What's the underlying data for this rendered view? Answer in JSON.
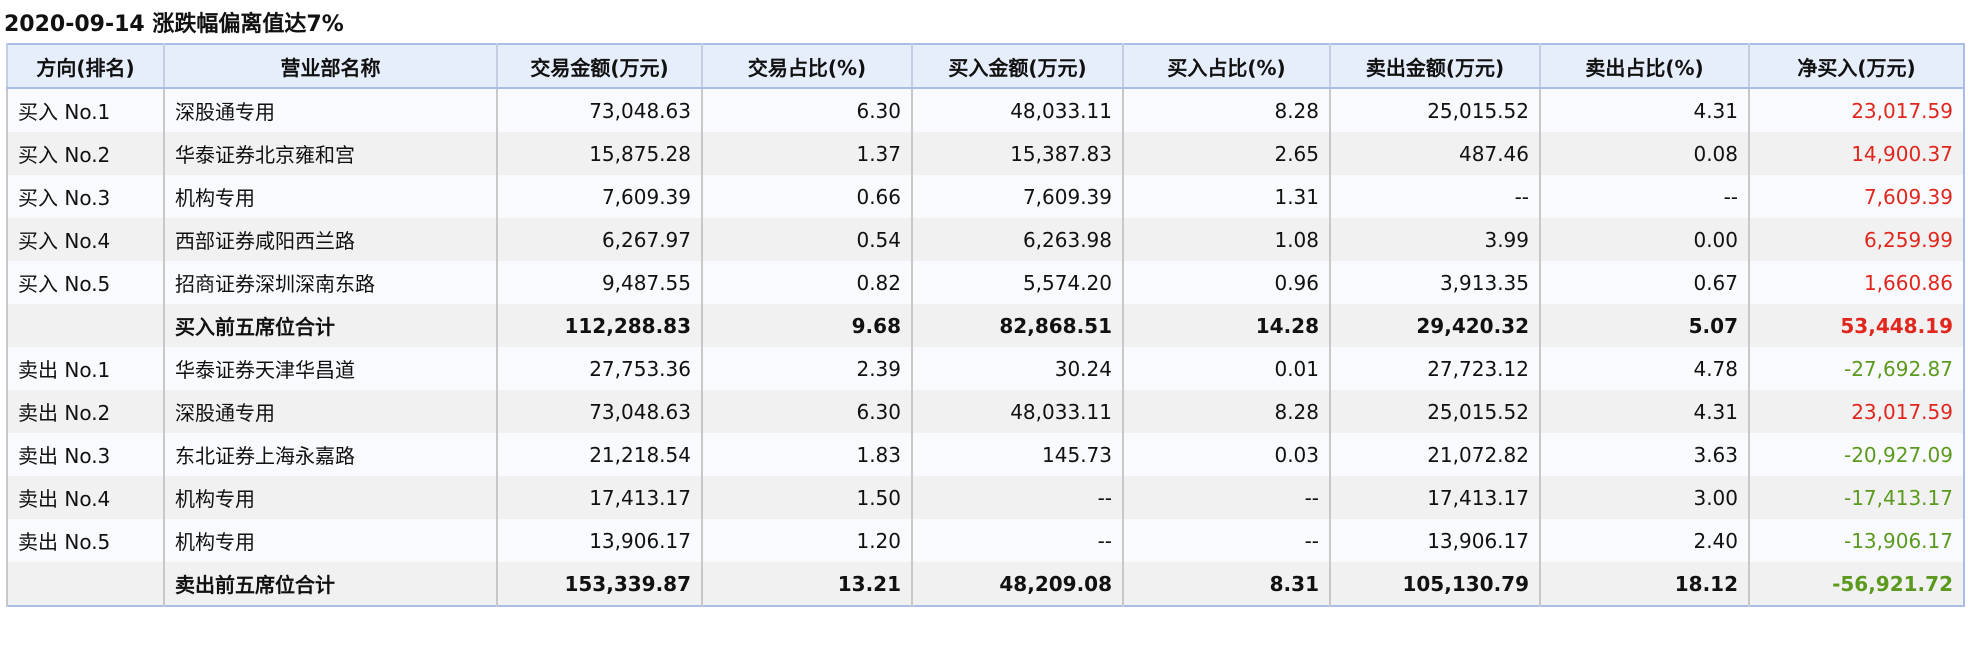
{
  "title": "2020-09-14 涨跌幅偏离值达7%",
  "colors": {
    "positive": "#e0261d",
    "negative": "#5b9a1f",
    "header_bg": "#e6edfb",
    "border": "#a9bde6"
  },
  "columns": [
    "方向(排名)",
    "营业部名称",
    "交易金额(万元)",
    "交易占比(%)",
    "买入金额(万元)",
    "买入占比(%)",
    "卖出金额(万元)",
    "卖出占比(%)",
    "净买入(万元)"
  ],
  "rows": [
    {
      "rank": "买入 No.1",
      "name": "深股通专用",
      "trade": "73,048.63",
      "trade_pct": "6.30",
      "buy": "48,033.11",
      "buy_pct": "8.28",
      "sell": "25,015.52",
      "sell_pct": "4.31",
      "net": "23,017.59",
      "sign": "pos",
      "summary": false
    },
    {
      "rank": "买入 No.2",
      "name": "华泰证券北京雍和宫",
      "trade": "15,875.28",
      "trade_pct": "1.37",
      "buy": "15,387.83",
      "buy_pct": "2.65",
      "sell": "487.46",
      "sell_pct": "0.08",
      "net": "14,900.37",
      "sign": "pos",
      "summary": false
    },
    {
      "rank": "买入 No.3",
      "name": "机构专用",
      "trade": "7,609.39",
      "trade_pct": "0.66",
      "buy": "7,609.39",
      "buy_pct": "1.31",
      "sell": "--",
      "sell_pct": "--",
      "net": "7,609.39",
      "sign": "pos",
      "summary": false
    },
    {
      "rank": "买入 No.4",
      "name": "西部证券咸阳西兰路",
      "trade": "6,267.97",
      "trade_pct": "0.54",
      "buy": "6,263.98",
      "buy_pct": "1.08",
      "sell": "3.99",
      "sell_pct": "0.00",
      "net": "6,259.99",
      "sign": "pos",
      "summary": false
    },
    {
      "rank": "买入 No.5",
      "name": "招商证券深圳深南东路",
      "trade": "9,487.55",
      "trade_pct": "0.82",
      "buy": "5,574.20",
      "buy_pct": "0.96",
      "sell": "3,913.35",
      "sell_pct": "0.67",
      "net": "1,660.86",
      "sign": "pos",
      "summary": false
    },
    {
      "rank": "",
      "name": "买入前五席位合计",
      "trade": "112,288.83",
      "trade_pct": "9.68",
      "buy": "82,868.51",
      "buy_pct": "14.28",
      "sell": "29,420.32",
      "sell_pct": "5.07",
      "net": "53,448.19",
      "sign": "pos",
      "summary": true
    },
    {
      "rank": "卖出 No.1",
      "name": "华泰证券天津华昌道",
      "trade": "27,753.36",
      "trade_pct": "2.39",
      "buy": "30.24",
      "buy_pct": "0.01",
      "sell": "27,723.12",
      "sell_pct": "4.78",
      "net": "-27,692.87",
      "sign": "neg",
      "summary": false
    },
    {
      "rank": "卖出 No.2",
      "name": "深股通专用",
      "trade": "73,048.63",
      "trade_pct": "6.30",
      "buy": "48,033.11",
      "buy_pct": "8.28",
      "sell": "25,015.52",
      "sell_pct": "4.31",
      "net": "23,017.59",
      "sign": "pos",
      "summary": false
    },
    {
      "rank": "卖出 No.3",
      "name": "东北证券上海永嘉路",
      "trade": "21,218.54",
      "trade_pct": "1.83",
      "buy": "145.73",
      "buy_pct": "0.03",
      "sell": "21,072.82",
      "sell_pct": "3.63",
      "net": "-20,927.09",
      "sign": "neg",
      "summary": false
    },
    {
      "rank": "卖出 No.4",
      "name": "机构专用",
      "trade": "17,413.17",
      "trade_pct": "1.50",
      "buy": "--",
      "buy_pct": "--",
      "sell": "17,413.17",
      "sell_pct": "3.00",
      "net": "-17,413.17",
      "sign": "neg",
      "summary": false
    },
    {
      "rank": "卖出 No.5",
      "name": "机构专用",
      "trade": "13,906.17",
      "trade_pct": "1.20",
      "buy": "--",
      "buy_pct": "--",
      "sell": "13,906.17",
      "sell_pct": "2.40",
      "net": "-13,906.17",
      "sign": "neg",
      "summary": false
    },
    {
      "rank": "",
      "name": "卖出前五席位合计",
      "trade": "153,339.87",
      "trade_pct": "13.21",
      "buy": "48,209.08",
      "buy_pct": "8.31",
      "sell": "105,130.79",
      "sell_pct": "18.12",
      "net": "-56,921.72",
      "sign": "neg",
      "summary": true
    }
  ]
}
